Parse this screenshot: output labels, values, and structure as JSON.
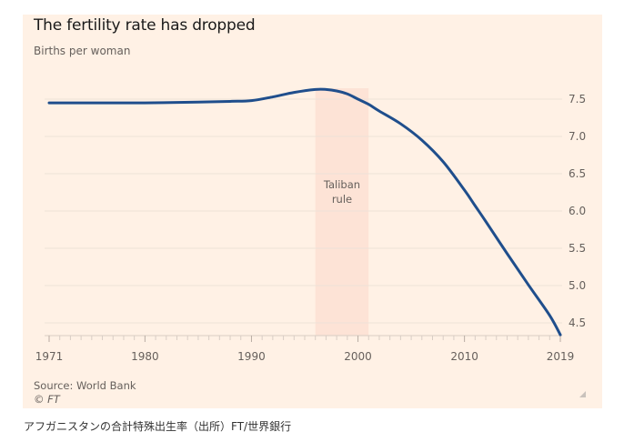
{
  "chart_data": {
    "type": "line",
    "title": "The fertility rate has dropped",
    "subtitle": "Births per woman",
    "xlabel": "",
    "ylabel": "Births per woman",
    "xlim": [
      1971,
      2019
    ],
    "ylim": [
      4.3,
      7.65
    ],
    "x_ticks": [
      1971,
      1980,
      1990,
      2000,
      2010,
      2019
    ],
    "x_tick_labels": [
      "1971",
      "1980",
      "1990",
      "2000",
      "2010",
      "2019"
    ],
    "y_ticks": [
      4.5,
      5.0,
      5.5,
      6.0,
      6.5,
      7.0,
      7.5
    ],
    "y_tick_labels": [
      "4.5",
      "5.0",
      "5.5",
      "6.0",
      "6.5",
      "7.0",
      "7.5"
    ],
    "y_axis_position": "right",
    "grid": true,
    "series": [
      {
        "name": "Fertility rate",
        "color": "#1f4e8c",
        "x": [
          1971,
          1975,
          1980,
          1985,
          1988,
          1990,
          1992,
          1994,
          1996,
          1997,
          1998,
          1999,
          2000,
          2001,
          2002,
          2004,
          2006,
          2008,
          2010,
          2011,
          2012,
          2014,
          2016,
          2018,
          2019
        ],
        "y": [
          7.45,
          7.45,
          7.45,
          7.46,
          7.47,
          7.48,
          7.53,
          7.59,
          7.63,
          7.63,
          7.61,
          7.57,
          7.5,
          7.43,
          7.34,
          7.17,
          6.95,
          6.66,
          6.28,
          6.07,
          5.86,
          5.43,
          5.01,
          4.6,
          4.34
        ]
      }
    ],
    "annotations": [
      {
        "type": "shaded-region",
        "x_start": 1996,
        "x_end": 2001,
        "label_lines": [
          "Taliban",
          "rule"
        ],
        "color": "#fde3d6"
      }
    ],
    "source": "Source: World Bank",
    "copyright": "© FT"
  },
  "caption": "アフガニスタンの合計特殊出生率（出所）FT/世界銀行",
  "colors": {
    "panel_background": "#fff1e5",
    "line": "#1f4e8c",
    "shade": "#fde3d6",
    "grid": "#ede2d8",
    "text_muted": "#66605c"
  }
}
